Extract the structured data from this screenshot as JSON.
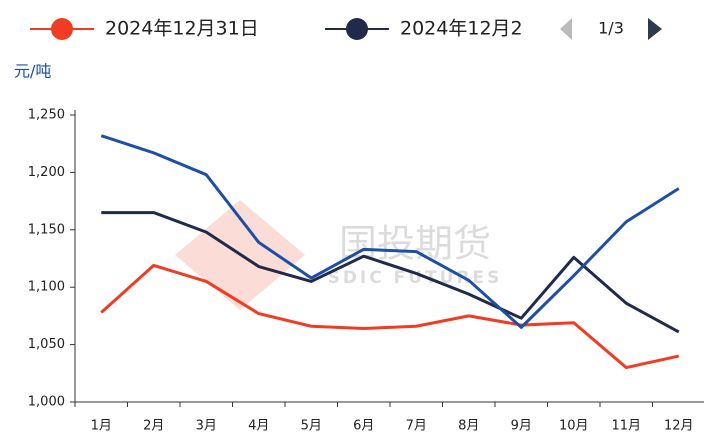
{
  "chart_data": {
    "type": "line",
    "y_label": "元/吨",
    "watermark": {
      "title": "国投期货",
      "subtitle": "SDIC FUTURES"
    },
    "legend_page": "1/3",
    "categories": [
      "1月",
      "2月",
      "3月",
      "4月",
      "5月",
      "6月",
      "7月",
      "8月",
      "9月",
      "10月",
      "11月",
      "12月"
    ],
    "series": [
      {
        "name": "2024年12月31日",
        "color": "#f03c22",
        "values": [
          1078,
          1119,
          1105,
          1077,
          1066,
          1064,
          1066,
          1075,
          1067,
          1069,
          1030,
          1040
        ]
      },
      {
        "name": "2024年12月2",
        "color": "#222a4a",
        "values": [
          1165,
          1165,
          1148,
          1118,
          1105,
          1127,
          1112,
          1094,
          1073,
          1126,
          1086,
          1061
        ]
      },
      {
        "color": "#1d4fa6",
        "values": [
          1232,
          1217,
          1198,
          1139,
          1108,
          1133,
          1131,
          1106,
          1065,
          1110,
          1157,
          1186
        ]
      }
    ],
    "ylim": [
      1000,
      1250
    ],
    "yticks": [
      {
        "value": 1000,
        "label": "1,000"
      },
      {
        "value": 1050,
        "label": "1,050"
      },
      {
        "value": 1100,
        "label": "1,100"
      },
      {
        "value": 1150,
        "label": "1,150"
      },
      {
        "value": 1200,
        "label": "1,200"
      },
      {
        "value": 1250,
        "label": "1,250"
      }
    ],
    "grid": false
  }
}
